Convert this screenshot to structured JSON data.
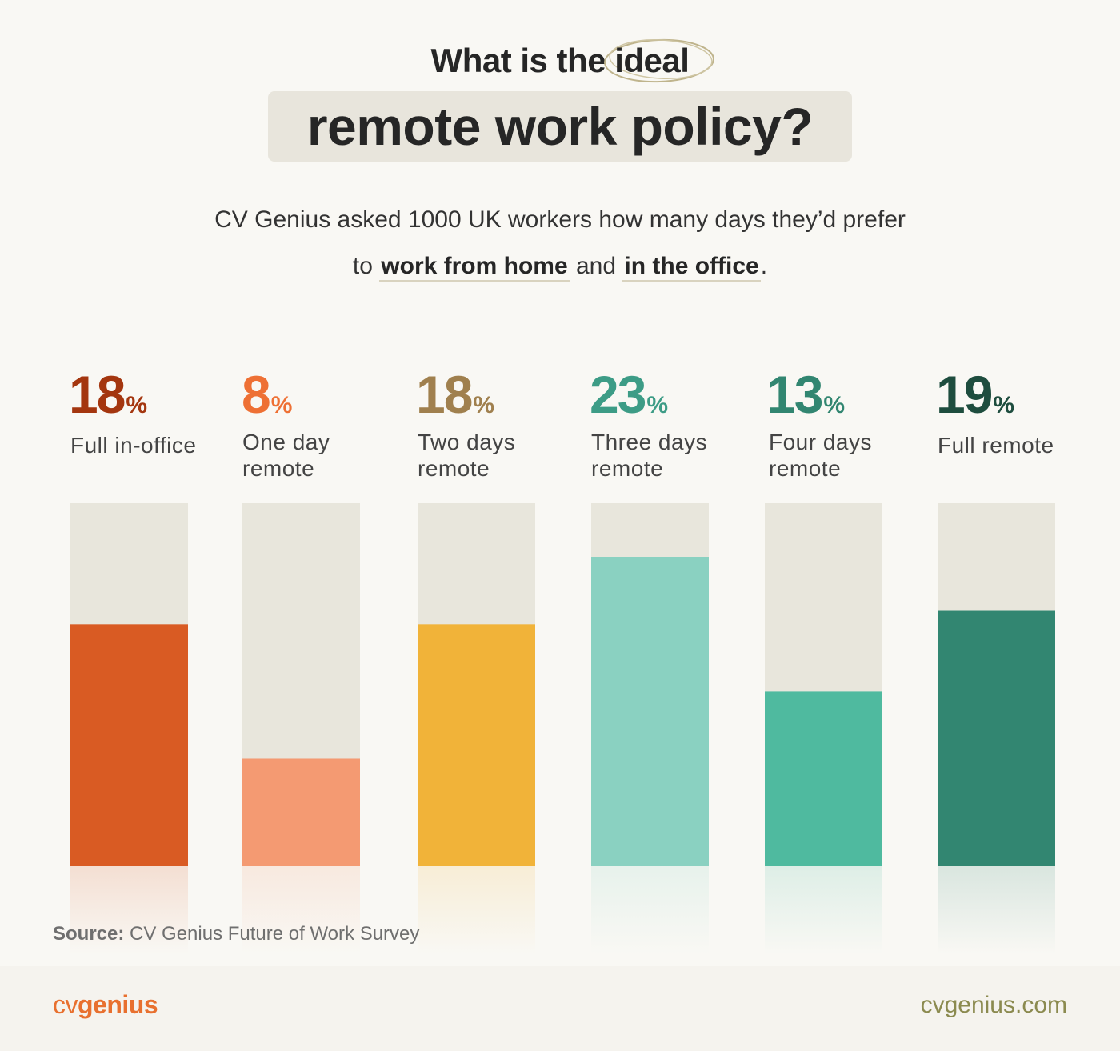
{
  "header": {
    "title_prefix": "What is the",
    "title_highlight": "ideal",
    "title_main": "remote work policy?",
    "subtitle_line1": "CV Genius asked 1000 UK workers how many days they’d prefer",
    "subtitle_to": "to",
    "subtitle_emph1": "work from home",
    "subtitle_and": "and",
    "subtitle_emph2": "in the office",
    "subtitle_end": "."
  },
  "chart_data": {
    "type": "bar",
    "title": "What is the ideal remote work policy?",
    "categories": [
      "Full in-office",
      "One day remote",
      "Two days remote",
      "Three days remote",
      "Four days remote",
      "Full remote"
    ],
    "values": [
      18,
      8,
      18,
      23,
      13,
      19
    ],
    "unit": "%",
    "ylim": [
      0,
      27
    ],
    "colors": {
      "bars": [
        "#d95b23",
        "#f49a72",
        "#f1b339",
        "#8ad1c1",
        "#4fba9f",
        "#328671"
      ],
      "labels": [
        "#a4360f",
        "#ee7034",
        "#a0804e",
        "#3d9c86",
        "#328671",
        "#1e4d3e"
      ],
      "track": "#e8e6dc"
    },
    "columns": [
      {
        "pct": "18",
        "sign": "%",
        "label": "Full in-office"
      },
      {
        "pct": "8",
        "sign": "%",
        "label": "One day remote"
      },
      {
        "pct": "18",
        "sign": "%",
        "label": "Two days remote"
      },
      {
        "pct": "23",
        "sign": "%",
        "label": "Three days remote"
      },
      {
        "pct": "13",
        "sign": "%",
        "label": "Four days remote"
      },
      {
        "pct": "19",
        "sign": "%",
        "label": "Full remote"
      }
    ]
  },
  "source": {
    "label": "Source:",
    "text": "CV Genius Future of Work Survey"
  },
  "footer": {
    "logo_light": "cv",
    "logo_bold": "genius",
    "website": "cvgenius.com"
  }
}
